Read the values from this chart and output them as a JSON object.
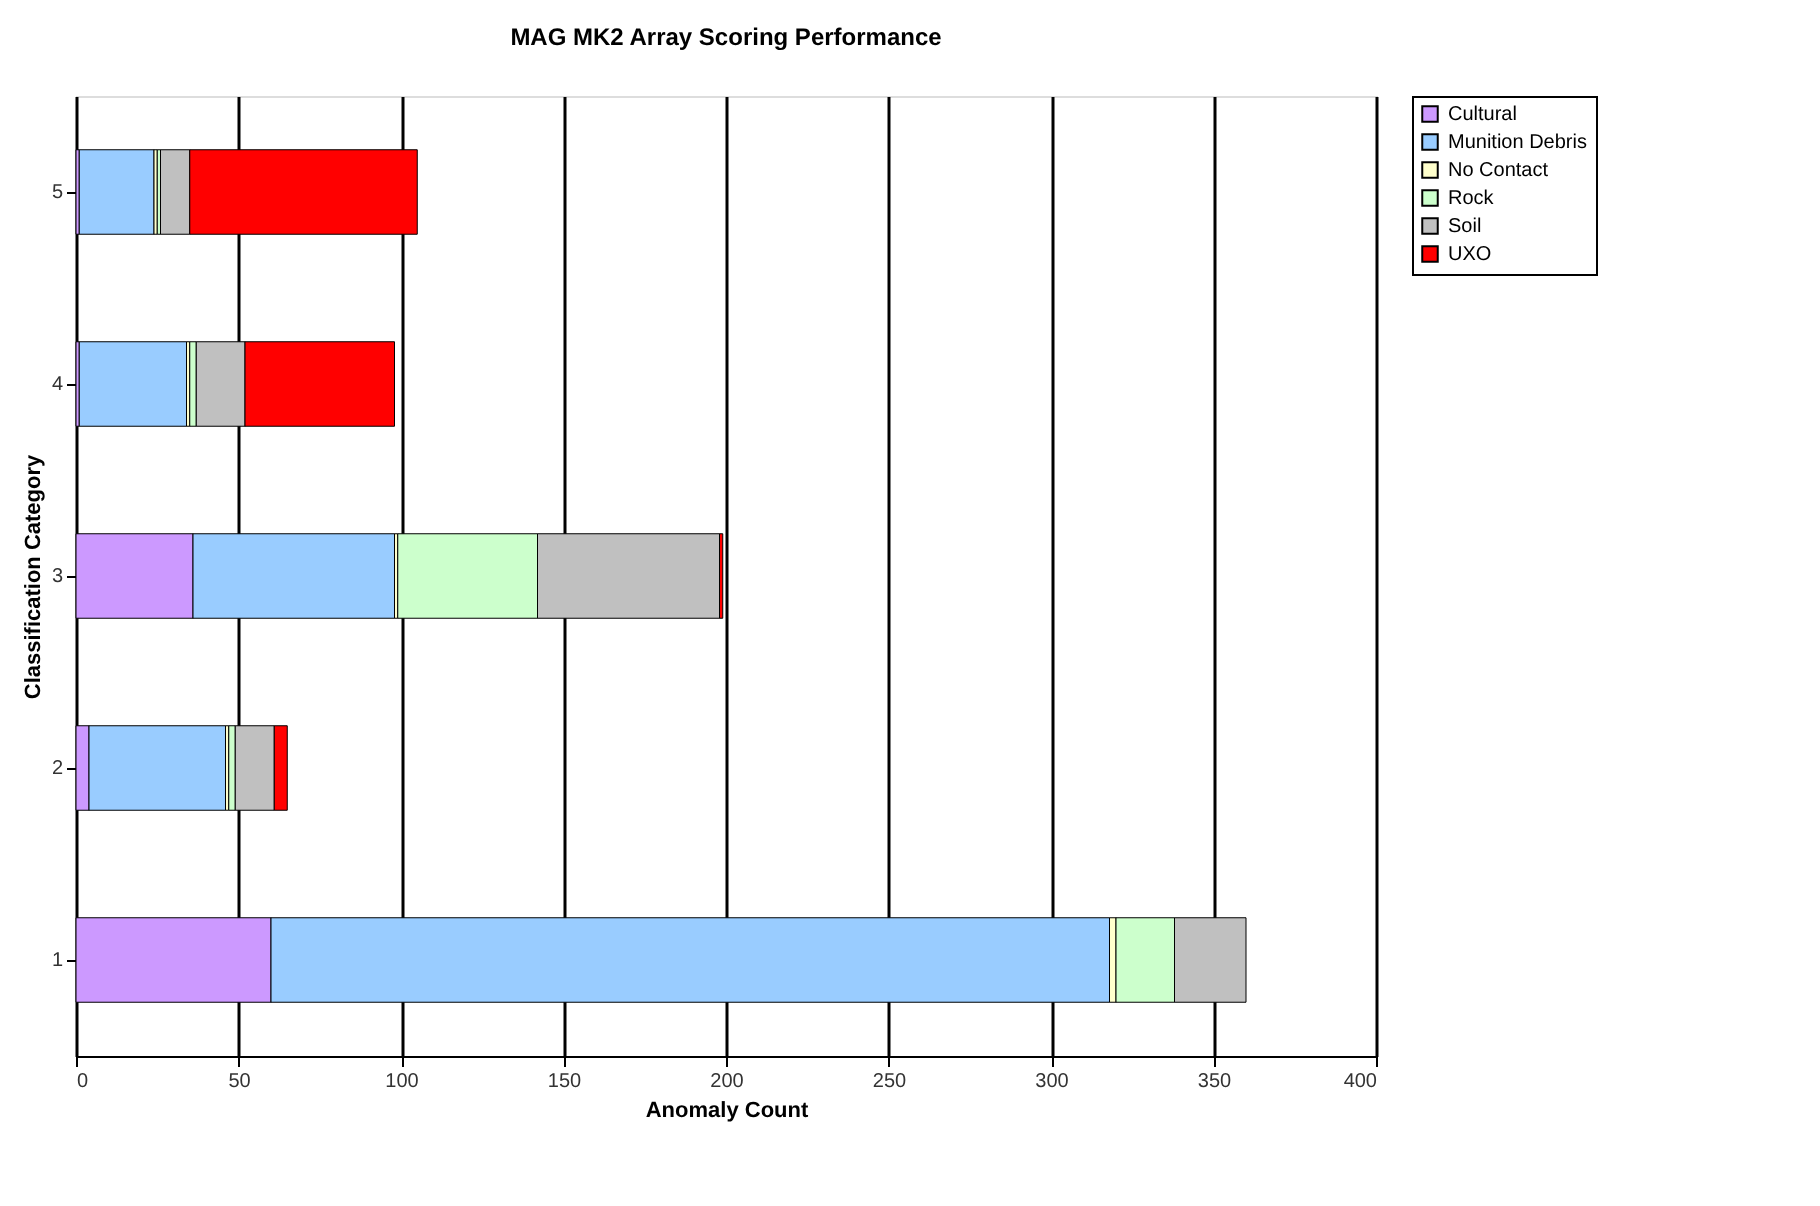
{
  "chart_data": {
    "type": "bar",
    "orientation": "horizontal",
    "stacked": true,
    "title": "MAG MK2 Array Scoring Performance",
    "xlabel": "Anomaly Count",
    "ylabel": "Classification Category",
    "categories": [
      "5",
      "4",
      "3",
      "2",
      "1"
    ],
    "series": [
      {
        "name": "Cultural",
        "color": "#cc99ff",
        "values": [
          1,
          1,
          36,
          4,
          60
        ]
      },
      {
        "name": "Munition Debris",
        "color": "#99ccff",
        "values": [
          23,
          33,
          62,
          42,
          258
        ]
      },
      {
        "name": "No Contact",
        "color": "#ffffcc",
        "values": [
          1,
          1,
          1,
          1,
          2
        ]
      },
      {
        "name": "Rock",
        "color": "#ccffcc",
        "values": [
          1,
          2,
          43,
          2,
          18
        ]
      },
      {
        "name": "Soil",
        "color": "#c0c0c0",
        "values": [
          9,
          15,
          56,
          12,
          22
        ]
      },
      {
        "name": "UXO",
        "color": "#ff0000",
        "values": [
          70,
          46,
          1,
          4,
          null
        ]
      }
    ],
    "xlim": [
      0,
      400
    ],
    "xticks": [
      0,
      50,
      100,
      150,
      200,
      250,
      300,
      350,
      400
    ],
    "grid": "x",
    "legend": "right"
  }
}
